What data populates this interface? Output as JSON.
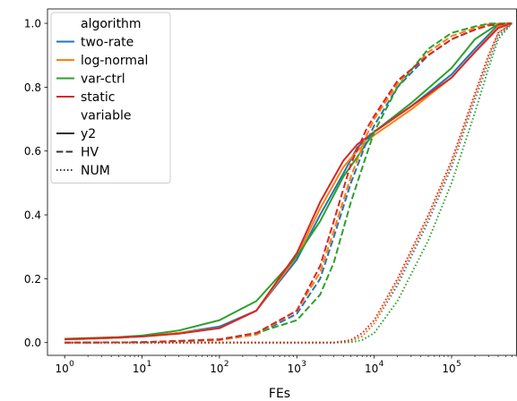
{
  "chart_data": {
    "type": "line",
    "xlabel": "FEs",
    "ylabel": "",
    "xscale": "log",
    "xlim": [
      0.6,
      700000
    ],
    "ylim": [
      -0.04,
      1.045
    ],
    "x_ticks": [
      {
        "value": 1,
        "label": "10",
        "exp": "0"
      },
      {
        "value": 10,
        "label": "10",
        "exp": "1"
      },
      {
        "value": 100,
        "label": "10",
        "exp": "2"
      },
      {
        "value": 1000,
        "label": "10",
        "exp": "3"
      },
      {
        "value": 10000,
        "label": "10",
        "exp": "4"
      },
      {
        "value": 100000,
        "label": "10",
        "exp": "5"
      }
    ],
    "y_ticks": [
      {
        "value": 0.0,
        "label": "0.0"
      },
      {
        "value": 0.2,
        "label": "0.2"
      },
      {
        "value": 0.4,
        "label": "0.4"
      },
      {
        "value": 0.6,
        "label": "0.6"
      },
      {
        "value": 0.8,
        "label": "0.8"
      },
      {
        "value": 1.0,
        "label": "1.0"
      }
    ],
    "grid": false,
    "legend_position": "top-left",
    "legend": {
      "hue_title": "algorithm",
      "hue_entries": [
        {
          "label": "two-rate",
          "color": "#1f77b4"
        },
        {
          "label": "log-normal",
          "color": "#ff7f0e"
        },
        {
          "label": "var-ctrl",
          "color": "#2ca02c"
        },
        {
          "label": "static",
          "color": "#d62728"
        }
      ],
      "style_title": "variable",
      "style_entries": [
        {
          "label": "y2",
          "dash": "solid"
        },
        {
          "label": "HV",
          "dash": "dashed"
        },
        {
          "label": "NUM",
          "dash": "dotted"
        }
      ]
    },
    "series": [
      {
        "algorithm": "two-rate",
        "variable": "y2",
        "color": "#1f77b4",
        "dash": "solid",
        "x": [
          1,
          2,
          5,
          10,
          30,
          100,
          300,
          1000,
          2000,
          4000,
          6000,
          10000,
          30000,
          100000,
          200000,
          400000,
          600000
        ],
        "y": [
          0.01,
          0.012,
          0.015,
          0.02,
          0.03,
          0.05,
          0.1,
          0.26,
          0.4,
          0.53,
          0.61,
          0.66,
          0.74,
          0.84,
          0.92,
          0.995,
          1.0
        ]
      },
      {
        "algorithm": "log-normal",
        "variable": "y2",
        "color": "#ff7f0e",
        "dash": "solid",
        "x": [
          1,
          2,
          5,
          10,
          30,
          100,
          300,
          1000,
          2000,
          4000,
          6000,
          10000,
          30000,
          100000,
          200000,
          400000,
          600000
        ],
        "y": [
          0.01,
          0.012,
          0.015,
          0.02,
          0.03,
          0.045,
          0.1,
          0.27,
          0.42,
          0.55,
          0.6,
          0.65,
          0.73,
          0.83,
          0.91,
          0.99,
          1.0
        ]
      },
      {
        "algorithm": "var-ctrl",
        "variable": "y2",
        "color": "#2ca02c",
        "dash": "solid",
        "x": [
          1,
          2,
          5,
          10,
          30,
          100,
          300,
          1000,
          2000,
          4000,
          6000,
          10000,
          30000,
          100000,
          200000,
          400000,
          600000
        ],
        "y": [
          0.012,
          0.014,
          0.017,
          0.022,
          0.038,
          0.07,
          0.13,
          0.27,
          0.38,
          0.52,
          0.58,
          0.66,
          0.75,
          0.86,
          0.95,
          0.998,
          1.0
        ]
      },
      {
        "algorithm": "static",
        "variable": "y2",
        "color": "#d62728",
        "dash": "solid",
        "x": [
          1,
          2,
          5,
          10,
          30,
          100,
          300,
          1000,
          2000,
          4000,
          6000,
          10000,
          30000,
          100000,
          200000,
          400000,
          600000
        ],
        "y": [
          0.01,
          0.013,
          0.016,
          0.019,
          0.028,
          0.045,
          0.1,
          0.28,
          0.44,
          0.57,
          0.62,
          0.66,
          0.74,
          0.83,
          0.91,
          0.985,
          1.0
        ]
      },
      {
        "algorithm": "two-rate",
        "variable": "HV",
        "color": "#1f77b4",
        "dash": "dashed",
        "x": [
          1,
          10,
          100,
          300,
          1000,
          2000,
          3000,
          5000,
          8000,
          10000,
          20000,
          50000,
          100000,
          200000,
          300000,
          600000
        ],
        "y": [
          0.0,
          0.001,
          0.008,
          0.025,
          0.09,
          0.2,
          0.33,
          0.5,
          0.63,
          0.68,
          0.8,
          0.9,
          0.95,
          0.98,
          0.995,
          1.0
        ]
      },
      {
        "algorithm": "log-normal",
        "variable": "HV",
        "color": "#ff7f0e",
        "dash": "dashed",
        "x": [
          1,
          10,
          100,
          300,
          1000,
          2000,
          3000,
          5000,
          8000,
          10000,
          20000,
          50000,
          100000,
          200000,
          300000,
          600000
        ],
        "y": [
          0.0,
          0.001,
          0.008,
          0.025,
          0.1,
          0.22,
          0.35,
          0.52,
          0.65,
          0.7,
          0.81,
          0.91,
          0.96,
          0.985,
          0.997,
          1.0
        ]
      },
      {
        "algorithm": "var-ctrl",
        "variable": "HV",
        "color": "#2ca02c",
        "dash": "dashed",
        "x": [
          1,
          10,
          100,
          300,
          1000,
          2000,
          3000,
          5000,
          8000,
          10000,
          20000,
          50000,
          100000,
          200000,
          300000,
          600000
        ],
        "y": [
          0.0,
          0.001,
          0.01,
          0.03,
          0.07,
          0.15,
          0.25,
          0.44,
          0.59,
          0.66,
          0.8,
          0.92,
          0.97,
          0.99,
          0.999,
          1.0
        ]
      },
      {
        "algorithm": "static",
        "variable": "HV",
        "color": "#d62728",
        "dash": "dashed",
        "x": [
          1,
          10,
          100,
          300,
          1000,
          2000,
          3000,
          5000,
          8000,
          10000,
          20000,
          50000,
          100000,
          200000,
          300000,
          600000
        ],
        "y": [
          0.0,
          0.001,
          0.01,
          0.03,
          0.1,
          0.24,
          0.38,
          0.56,
          0.67,
          0.71,
          0.82,
          0.9,
          0.95,
          0.98,
          0.993,
          1.0
        ]
      },
      {
        "algorithm": "two-rate",
        "variable": "NUM",
        "color": "#1f77b4",
        "dash": "dotted",
        "x": [
          1,
          1000,
          3000,
          5000,
          7000,
          10000,
          20000,
          50000,
          100000,
          200000,
          300000,
          400000,
          600000
        ],
        "y": [
          0.0,
          0.0,
          0.0,
          0.005,
          0.02,
          0.06,
          0.18,
          0.38,
          0.55,
          0.76,
          0.88,
          0.96,
          1.0
        ]
      },
      {
        "algorithm": "log-normal",
        "variable": "NUM",
        "color": "#ff7f0e",
        "dash": "dotted",
        "x": [
          1,
          1000,
          3000,
          5000,
          7000,
          10000,
          20000,
          50000,
          100000,
          200000,
          300000,
          400000,
          600000
        ],
        "y": [
          0.0,
          0.0,
          0.0,
          0.005,
          0.02,
          0.06,
          0.19,
          0.39,
          0.56,
          0.77,
          0.89,
          0.97,
          1.0
        ]
      },
      {
        "algorithm": "var-ctrl",
        "variable": "NUM",
        "color": "#2ca02c",
        "dash": "dotted",
        "x": [
          1,
          1000,
          3000,
          5000,
          7000,
          10000,
          20000,
          50000,
          100000,
          200000,
          300000,
          400000,
          600000
        ],
        "y": [
          0.0,
          0.0,
          0.0,
          0.001,
          0.008,
          0.03,
          0.13,
          0.32,
          0.5,
          0.72,
          0.86,
          0.95,
          1.0
        ]
      },
      {
        "algorithm": "static",
        "variable": "NUM",
        "color": "#d62728",
        "dash": "dotted",
        "x": [
          1,
          1000,
          3000,
          5000,
          7000,
          10000,
          20000,
          50000,
          100000,
          200000,
          300000,
          400000,
          600000
        ],
        "y": [
          0.0,
          0.0,
          0.0,
          0.008,
          0.03,
          0.07,
          0.2,
          0.4,
          0.57,
          0.78,
          0.9,
          0.97,
          1.0
        ]
      }
    ]
  }
}
